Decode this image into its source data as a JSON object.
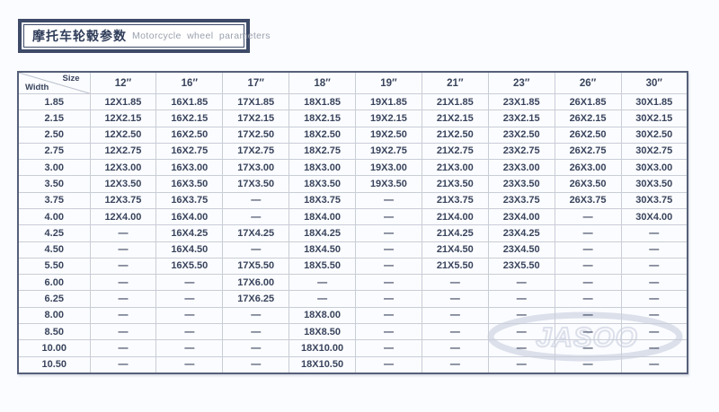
{
  "title": {
    "zh": "摩托车轮毂参数",
    "en": "Motorcycle wheel parameters"
  },
  "watermark": {
    "text": "JASOO"
  },
  "table": {
    "corner": {
      "top_label": "Size",
      "bottom_label": "Width"
    },
    "columns": [
      "12″",
      "16″",
      "17″",
      "18″",
      "19″",
      "21″",
      "23″",
      "26″",
      "30″"
    ],
    "rows": [
      {
        "width": "1.85",
        "cells": [
          "12X1.85",
          "16X1.85",
          "17X1.85",
          "18X1.85",
          "19X1.85",
          "21X1.85",
          "23X1.85",
          "26X1.85",
          "30X1.85"
        ]
      },
      {
        "width": "2.15",
        "cells": [
          "12X2.15",
          "16X2.15",
          "17X2.15",
          "18X2.15",
          "19X2.15",
          "21X2.15",
          "23X2.15",
          "26X2.15",
          "30X2.15"
        ]
      },
      {
        "width": "2.50",
        "cells": [
          "12X2.50",
          "16X2.50",
          "17X2.50",
          "18X2.50",
          "19X2.50",
          "21X2.50",
          "23X2.50",
          "26X2.50",
          "30X2.50"
        ]
      },
      {
        "width": "2.75",
        "cells": [
          "12X2.75",
          "16X2.75",
          "17X2.75",
          "18X2.75",
          "19X2.75",
          "21X2.75",
          "23X2.75",
          "26X2.75",
          "30X2.75"
        ]
      },
      {
        "width": "3.00",
        "cells": [
          "12X3.00",
          "16X3.00",
          "17X3.00",
          "18X3.00",
          "19X3.00",
          "21X3.00",
          "23X3.00",
          "26X3.00",
          "30X3.00"
        ]
      },
      {
        "width": "3.50",
        "cells": [
          "12X3.50",
          "16X3.50",
          "17X3.50",
          "18X3.50",
          "19X3.50",
          "21X3.50",
          "23X3.50",
          "26X3.50",
          "30X3.50"
        ]
      },
      {
        "width": "3.75",
        "cells": [
          "12X3.75",
          "16X3.75",
          "—",
          "18X3.75",
          "—",
          "21X3.75",
          "23X3.75",
          "26X3.75",
          "30X3.75"
        ]
      },
      {
        "width": "4.00",
        "cells": [
          "12X4.00",
          "16X4.00",
          "—",
          "18X4.00",
          "—",
          "21X4.00",
          "23X4.00",
          "—",
          "30X4.00"
        ]
      },
      {
        "width": "4.25",
        "cells": [
          "—",
          "16X4.25",
          "17X4.25",
          "18X4.25",
          "—",
          "21X4.25",
          "23X4.25",
          "—",
          "—"
        ]
      },
      {
        "width": "4.50",
        "cells": [
          "—",
          "16X4.50",
          "—",
          "18X4.50",
          "—",
          "21X4.50",
          "23X4.50",
          "—",
          "—"
        ]
      },
      {
        "width": "5.50",
        "cells": [
          "—",
          "16X5.50",
          "17X5.50",
          "18X5.50",
          "—",
          "21X5.50",
          "23X5.50",
          "—",
          "—"
        ]
      },
      {
        "width": "6.00",
        "cells": [
          "—",
          "—",
          "17X6.00",
          "—",
          "—",
          "—",
          "—",
          "—",
          "—"
        ]
      },
      {
        "width": "6.25",
        "cells": [
          "—",
          "—",
          "17X6.25",
          "—",
          "—",
          "—",
          "—",
          "—",
          "—"
        ]
      },
      {
        "width": "8.00",
        "cells": [
          "—",
          "—",
          "—",
          "18X8.00",
          "—",
          "—",
          "—",
          "—",
          "—"
        ]
      },
      {
        "width": "8.50",
        "cells": [
          "—",
          "—",
          "—",
          "18X8.50",
          "—",
          "—",
          "—",
          "—",
          "—"
        ]
      },
      {
        "width": "10.00",
        "cells": [
          "—",
          "—",
          "—",
          "18X10.00",
          "—",
          "—",
          "—",
          "—",
          "—"
        ]
      },
      {
        "width": "10.50",
        "cells": [
          "—",
          "—",
          "—",
          "18X10.50",
          "—",
          "—",
          "—",
          "—",
          "—"
        ]
      }
    ]
  },
  "colors": {
    "accent": "#3e4a68",
    "text": "#39445c",
    "grid_line": "#c9cdd7",
    "frame": "#56607a",
    "watermark": "#d9dde9"
  }
}
